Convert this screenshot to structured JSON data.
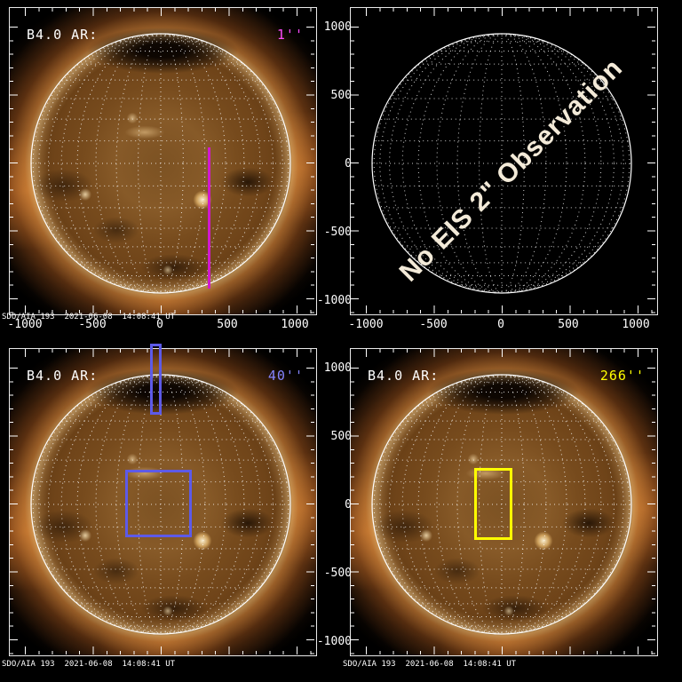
{
  "panels": [
    {
      "ar_label": "B4.0 AR:",
      "fov_label": "1''",
      "caption": "SDO/AIA 193  2021-06-08  14:08:41 UT",
      "x_ticks": [
        "-1000",
        "-500",
        "0",
        "500",
        "1000"
      ]
    },
    {
      "message": "No EIS 2\" Observation",
      "x_ticks": [
        "-1000",
        "-500",
        "0",
        "500",
        "1000"
      ],
      "y_ticks": [
        "1000",
        "500",
        "0",
        "-500",
        "-1000"
      ]
    },
    {
      "ar_label": "B4.0 AR:",
      "fov_label": "40''",
      "caption": "SDO/AIA 193  2021-06-08  14:08:41 UT"
    },
    {
      "ar_label": "B4.0 AR:",
      "fov_label": "266''",
      "caption": "SDO/AIA 193  2021-06-08  14:08:41 UT",
      "y_ticks": [
        "1000",
        "500",
        "0",
        "-500",
        "-1000"
      ]
    }
  ],
  "colors": {
    "fov_1arcsec": "#d018d0",
    "fov_1arcsec_label": "#ff4cff",
    "fov_40arcsec": "#5d5ae8",
    "fov_40arcsec_label": "#8484ff",
    "fov_266arcsec": "#ffff00",
    "grid": "#ffffff",
    "no_obs_text": "#f3ead8",
    "sun_colormap": "gold-brown AIA 193"
  },
  "chart_data": [
    {
      "type": "heatmap",
      "panel": "top-left",
      "title": "EIS 1\" slit pointing on SDO/AIA 193 full-disk image",
      "flare_ar_label": "B4.0 AR:",
      "fov_width_label": "1''",
      "caption": "SDO/AIA 193  2021-06-08  14:08:41 UT",
      "units": "arcsec",
      "xlim": [
        -1150,
        1150
      ],
      "ylim": [
        -1150,
        1150
      ],
      "x_ticks": [
        -1000,
        -500,
        0,
        500,
        1000
      ],
      "y_ticks": [
        1000,
        500,
        0,
        -500,
        -1000
      ],
      "grid": "dotted solar latitude-longitude grid, solid limb circle",
      "overlays": [
        {
          "shape": "vertical-line",
          "name": "EIS 1 arcsec slit",
          "color": "#d018d0",
          "x": 330,
          "y_from": -925,
          "y_to": 125
        }
      ]
    },
    {
      "type": "heatmap",
      "panel": "top-right",
      "title": "No EIS 2\" Observation",
      "units": "arcsec",
      "xlim": [
        -1150,
        1150
      ],
      "ylim": [
        -1150,
        1150
      ],
      "x_ticks": [
        -1000,
        -500,
        0,
        500,
        1000
      ],
      "y_ticks": [
        1000,
        500,
        0,
        -500,
        -1000
      ],
      "grid": "dotted solar latitude-longitude grid, solid limb circle, no image",
      "overlays": []
    },
    {
      "type": "heatmap",
      "panel": "bottom-left",
      "title": "EIS 40\" slot pointings on SDO/AIA 193 full-disk image",
      "flare_ar_label": "B4.0 AR:",
      "fov_width_label": "40''",
      "caption": "SDO/AIA 193  2021-06-08  14:08:41 UT",
      "units": "arcsec",
      "xlim": [
        -1150,
        1150
      ],
      "ylim": [
        -1150,
        1150
      ],
      "x_ticks": [
        -1000,
        -500,
        0,
        500,
        1000
      ],
      "y_ticks": [
        1000,
        500,
        0,
        -500,
        -1000
      ],
      "overlays": [
        {
          "shape": "rect",
          "name": "EIS 40 arcsec FOV disk-center",
          "color": "#5d5ae8",
          "x_from": -285,
          "x_to": 210,
          "y_from": -230,
          "y_to": 265
        },
        {
          "shape": "rect",
          "name": "EIS 40 arcsec FOV north off-limb",
          "color": "#5d5ae8",
          "x_from": -95,
          "x_to": -15,
          "y_from": 675,
          "y_to": 1205
        }
      ]
    },
    {
      "type": "heatmap",
      "panel": "bottom-right",
      "title": "EIS 266\" slot pointing on SDO/AIA 193 full-disk image",
      "flare_ar_label": "B4.0 AR:",
      "fov_width_label": "266''",
      "caption": "SDO/AIA 193  2021-06-08  14:08:41 UT",
      "units": "arcsec",
      "xlim": [
        -1150,
        1150
      ],
      "ylim": [
        -1150,
        1150
      ],
      "x_ticks": [
        -1000,
        -500,
        0,
        500,
        1000
      ],
      "y_ticks": [
        1000,
        500,
        0,
        -500,
        -1000
      ],
      "overlays": [
        {
          "shape": "rect",
          "name": "EIS 266 arcsec slot FOV",
          "color": "#ffff00",
          "x_from": -240,
          "x_to": 40,
          "y_from": -250,
          "y_to": 278
        }
      ]
    }
  ]
}
